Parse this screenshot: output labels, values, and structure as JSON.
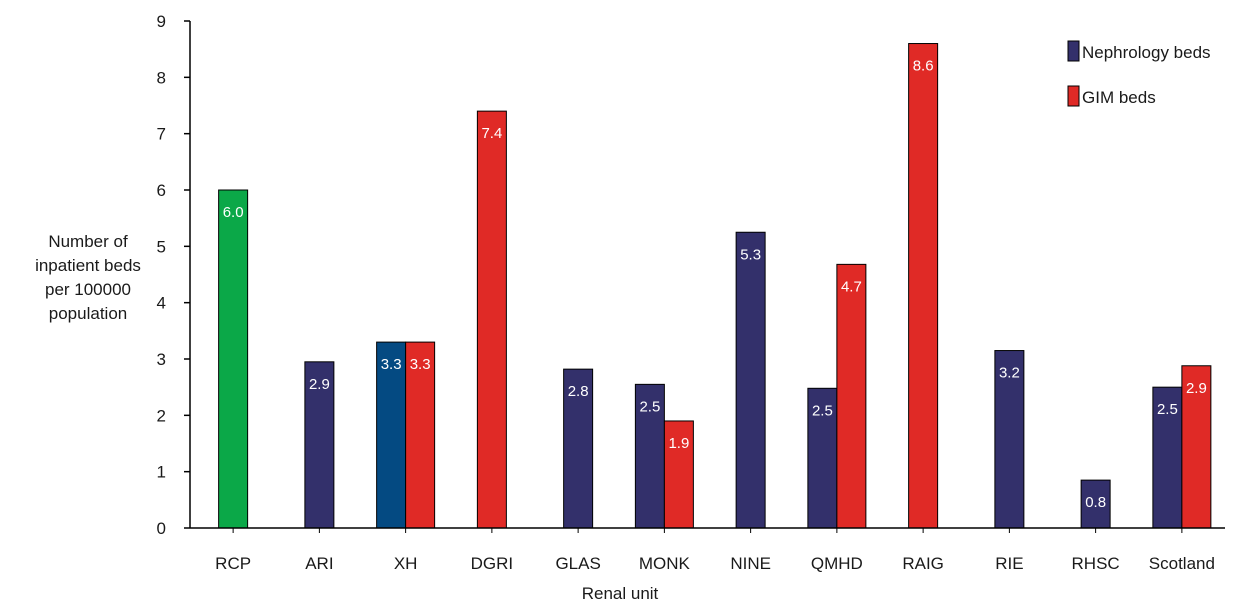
{
  "chart_data": {
    "type": "bar",
    "xlabel": "Renal unit",
    "ylabel_lines": [
      "Number of",
      "inpatient beds",
      "per 100000",
      "population"
    ],
    "ylim": [
      0,
      9
    ],
    "yticks": [
      "0",
      "1",
      "2",
      "3",
      "4",
      "5",
      "6",
      "7",
      "8",
      "9"
    ],
    "grid": false,
    "legend_position": "top-right",
    "categories": [
      "RCP",
      "ARI",
      "XH",
      "DGRI",
      "GLAS",
      "MONK",
      "NINE",
      "QMHD",
      "RAIG",
      "RIE",
      "RHSC",
      "Scotland"
    ],
    "series": [
      {
        "name": "Nephrology beds",
        "color": "#33306b",
        "values": [
          null,
          2.95,
          3.3,
          null,
          2.82,
          2.55,
          5.25,
          2.48,
          null,
          3.15,
          0.85,
          2.5
        ],
        "labels": [
          null,
          "2.9",
          "3.3",
          null,
          "2.8",
          "2.5",
          "5.3",
          "2.5",
          null,
          "3.2",
          "0.8",
          "2.5"
        ]
      },
      {
        "name": "GIM beds",
        "color": "#e02a26",
        "values": [
          null,
          null,
          3.3,
          7.4,
          null,
          1.9,
          null,
          4.68,
          8.6,
          null,
          null,
          2.88
        ],
        "labels": [
          null,
          null,
          "3.3",
          "7.4",
          null,
          "1.9",
          null,
          "4.7",
          "8.6",
          null,
          null,
          "2.9"
        ]
      }
    ],
    "special_bars": [
      {
        "category": "RCP",
        "value": 6.0,
        "label": "6.0",
        "color": "#0ba848"
      }
    ],
    "highlight_colors": {
      "XH_nephrology": "#044a82"
    }
  }
}
